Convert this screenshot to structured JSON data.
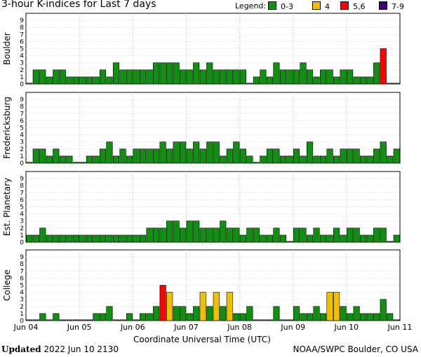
{
  "title": "3-hour K-indices for Last 7 days",
  "legend": {
    "label": "Legend:",
    "items": [
      {
        "label": "0-3",
        "color": "#109010"
      },
      {
        "label": "4",
        "color": "#f0c000"
      },
      {
        "label": "5,6",
        "color": "#ff0000"
      },
      {
        "label": "7-9",
        "color": "#400080"
      }
    ]
  },
  "footer": {
    "updated_label": "Updated",
    "updated_value": "2022 Jun 10 2130",
    "source": "NOAA/SWPC Boulder, CO USA"
  },
  "chart_data": [
    {
      "type": "bar",
      "station": "Boulder",
      "ylim": [
        0,
        9
      ],
      "values": [
        0,
        2,
        2,
        1,
        2,
        2,
        1,
        1,
        1,
        1,
        1,
        2,
        1,
        3,
        2,
        2,
        2,
        2,
        2,
        3,
        3,
        3,
        3,
        2,
        2,
        3,
        2,
        3,
        2,
        2,
        2,
        2,
        2,
        0,
        1,
        2,
        1,
        3,
        2,
        2,
        2,
        3,
        2,
        1,
        2,
        2,
        1,
        2,
        2,
        1,
        1,
        1,
        3,
        5,
        0,
        0
      ]
    },
    {
      "type": "bar",
      "station": "Fredericksburg",
      "ylim": [
        0,
        9
      ],
      "values": [
        0,
        2,
        2,
        1,
        2,
        1,
        1,
        0,
        0,
        1,
        1,
        2,
        3,
        1,
        2,
        1,
        2,
        2,
        2,
        2,
        3,
        2,
        3,
        3,
        2,
        3,
        2,
        3,
        3,
        1,
        2,
        3,
        2,
        1,
        0,
        1,
        2,
        2,
        1,
        1,
        2,
        1,
        3,
        1,
        1,
        2,
        1,
        2,
        2,
        2,
        1,
        1,
        2,
        3,
        1,
        2,
        0
      ]
    },
    {
      "type": "bar",
      "station": "Est. Planetary",
      "ylim": [
        0,
        9
      ],
      "values": [
        1,
        1,
        2,
        1,
        1,
        1,
        1,
        1,
        1,
        1,
        1,
        1,
        1,
        1,
        1,
        1,
        1,
        1,
        2,
        2,
        2,
        3,
        3,
        2,
        3,
        3,
        2,
        2,
        2,
        3,
        2,
        2,
        1,
        2,
        2,
        1,
        1,
        2,
        1,
        0,
        2,
        2,
        1,
        2,
        1,
        1,
        2,
        1,
        2,
        2,
        1,
        1,
        2,
        2,
        0,
        1,
        0
      ]
    },
    {
      "type": "bar",
      "station": "College",
      "ylim": [
        0,
        9
      ],
      "values": [
        0,
        0,
        1,
        0,
        1,
        0,
        0,
        0,
        0,
        0,
        1,
        1,
        2,
        0,
        0,
        1,
        0,
        1,
        1,
        2,
        5,
        4,
        2,
        2,
        1,
        2,
        4,
        2,
        4,
        2,
        4,
        1,
        1,
        2,
        0,
        0,
        0,
        2,
        0,
        0,
        2,
        1,
        1,
        2,
        1,
        4,
        4,
        2,
        1,
        2,
        1,
        1,
        1,
        3,
        1,
        0,
        0
      ]
    }
  ],
  "yticks": [
    "0",
    "1",
    "2",
    "3",
    "4",
    "5",
    "6",
    "7",
    "8",
    "9"
  ],
  "xticks": [
    "Jun 04",
    "Jun 05",
    "Jun 06",
    "Jun 07",
    "Jun 08",
    "Jun 09",
    "Jun 10",
    "Jun 11"
  ],
  "xlabel": "Coordinate Universal Time (UTC)",
  "grid": true
}
